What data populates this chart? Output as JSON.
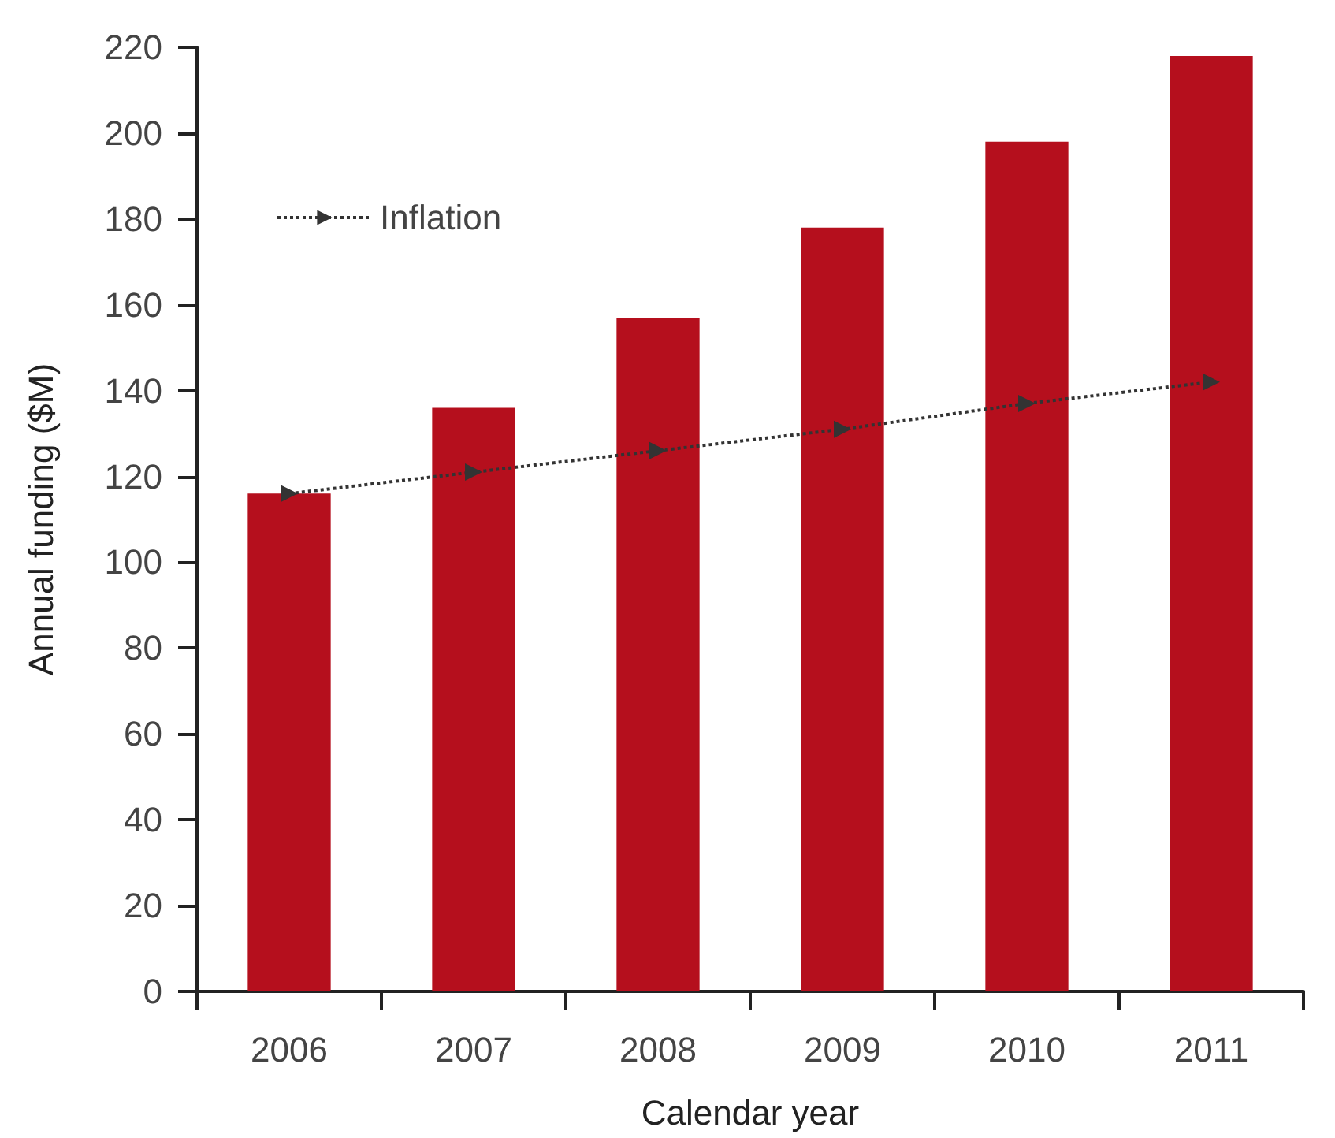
{
  "chart_data": {
    "type": "bar",
    "xlabel": "Calendar year",
    "ylabel": "Annual funding ($M)",
    "categories": [
      "2006",
      "2007",
      "2008",
      "2009",
      "2010",
      "2011"
    ],
    "series": [
      {
        "color": "#b50f1d",
        "values": [
          116,
          136,
          157,
          178,
          198,
          218
        ]
      },
      {
        "type": "line",
        "name": "Inflation",
        "color": "#333333",
        "marker": "triangle",
        "line_style": "dotted",
        "values": [
          116,
          121,
          126,
          131,
          137,
          142
        ]
      }
    ],
    "ylim": [
      0,
      220
    ],
    "yticks": [
      0,
      20,
      40,
      60,
      80,
      100,
      120,
      140,
      160,
      180,
      200,
      220
    ],
    "grid": false,
    "legend": "top left"
  }
}
